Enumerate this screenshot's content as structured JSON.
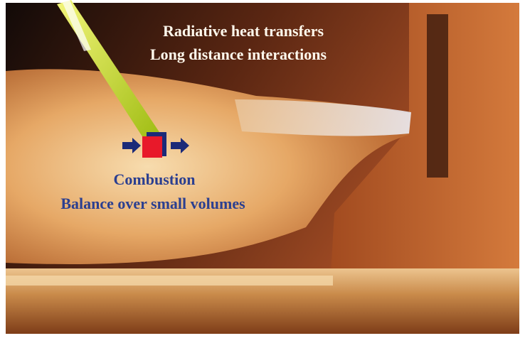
{
  "annotations": {
    "top": [
      "Radiative heat transfers",
      "Long distance interactions"
    ],
    "bottom": [
      "Combustion",
      "Balance over small volumes"
    ]
  }
}
